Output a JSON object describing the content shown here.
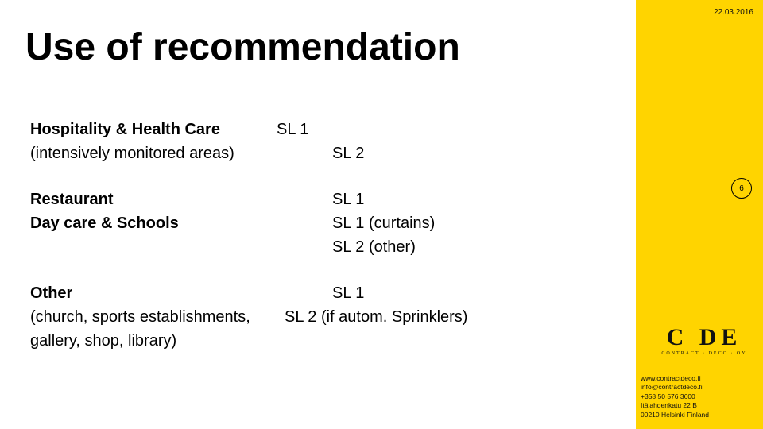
{
  "colors": {
    "sidebar_bg": "#ffd400",
    "main_bg": "#ffffff",
    "text": "#000000",
    "date_text": "#111111"
  },
  "date": "22.03.2016",
  "page_number": "6",
  "title": "Use of recommendation",
  "section1": {
    "label_bold": "Hospitality & Health Care",
    "label_sub": "(intensively monitored areas)",
    "col2_row1": "SL 1",
    "col3_row2": "SL 2"
  },
  "section2": {
    "label1": "Restaurant",
    "label2": "Day care & Schools",
    "col3_row1": "SL 1",
    "col3_row2": "SL 1 (curtains)",
    "col3_row3": "SL 2 (other)"
  },
  "section3": {
    "label1": "Other",
    "label2": "(church, sports establishments,",
    "label3": "gallery, shop, library)",
    "col3_row1": "SL 1",
    "col2and3_row2": "SL 2 (if autom. Sprinklers)"
  },
  "logo": {
    "mark": "C DE",
    "sub": "CONTRACT · DECO · OY"
  },
  "contact": {
    "line1": "www.contractdeco.fi",
    "line2": "info@contractdeco.fi",
    "line3": "+358 50 576 3600",
    "line4": "Itälahdenkatu 22 B",
    "line5": "00210 Helsinki Finland"
  }
}
